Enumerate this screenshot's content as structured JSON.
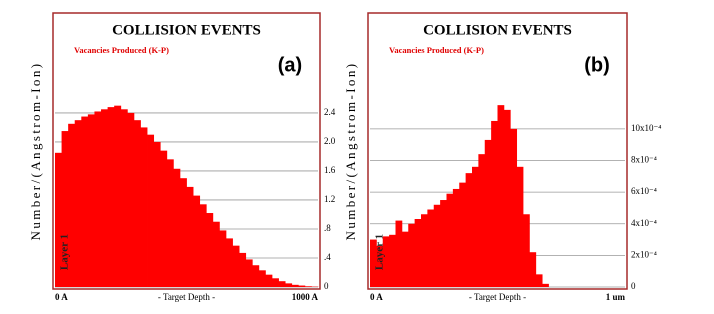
{
  "chart_data": [
    {
      "type": "histogram",
      "title": "COLLISION EVENTS",
      "subtitle": "Vacancies Produced (K-P)",
      "panel_label": "(a)",
      "ylabel": "Number/(Angstrom-Ion)",
      "layer_label": "Layer 1",
      "xlabel": "- Target Depth -",
      "color": "#ff0000",
      "grid": true,
      "bins": [
        0,
        25,
        50,
        75,
        100,
        125,
        150,
        175,
        200,
        225,
        250,
        275,
        300,
        325,
        350,
        375,
        400,
        425,
        450,
        475,
        500,
        525,
        550,
        575,
        600,
        625,
        650,
        675,
        700,
        725,
        750,
        775,
        800,
        825,
        850,
        875,
        900,
        925,
        950,
        975,
        1000
      ],
      "values": [
        1.85,
        2.15,
        2.25,
        2.3,
        2.35,
        2.38,
        2.42,
        2.45,
        2.48,
        2.5,
        2.45,
        2.4,
        2.3,
        2.2,
        2.1,
        2.0,
        1.88,
        1.76,
        1.63,
        1.5,
        1.38,
        1.26,
        1.14,
        1.02,
        0.9,
        0.78,
        0.67,
        0.57,
        0.47,
        0.38,
        0.3,
        0.23,
        0.17,
        0.12,
        0.08,
        0.05,
        0.03,
        0.02,
        0.01,
        0.005
      ],
      "xlim": [
        0,
        1000
      ],
      "xticks": [
        {
          "value": 0,
          "label": "0 A"
        },
        {
          "value": 1000,
          "label": "1000 A"
        }
      ],
      "ylim": [
        0,
        3.75
      ],
      "yticks": [
        0,
        {
          "value": 0.4,
          "label": ".4"
        },
        {
          "value": 0.8,
          "label": ".8"
        },
        1.2,
        1.6,
        {
          "value": 2,
          "label": "2.0"
        },
        2.4
      ]
    },
    {
      "type": "histogram",
      "title": "COLLISION EVENTS",
      "subtitle": "Vacancies Produced (K-P)",
      "panel_label": "(b)",
      "ylabel": "Number/(Angstrom-Ion)",
      "layer_label": "Layer 1",
      "xlabel": "- Target Depth -",
      "color": "#ff0000",
      "grid": true,
      "bins": [
        0,
        0.025,
        0.05,
        0.075,
        0.1,
        0.125,
        0.15,
        0.175,
        0.2,
        0.225,
        0.25,
        0.275,
        0.3,
        0.325,
        0.35,
        0.375,
        0.4,
        0.425,
        0.45,
        0.475,
        0.5,
        0.525,
        0.55,
        0.575,
        0.6,
        0.625,
        0.65,
        0.675,
        0.7,
        0.725,
        0.75,
        0.775,
        0.8,
        0.825,
        0.85,
        0.875,
        0.9,
        0.925,
        0.95,
        0.975,
        1
      ],
      "values": [
        0.0003,
        0.00026,
        0.00032,
        0.00033,
        0.00042,
        0.00035,
        0.0004,
        0.00043,
        0.00046,
        0.00049,
        0.00052,
        0.00055,
        0.00059,
        0.00062,
        0.00066,
        0.00072,
        0.00076,
        0.00084,
        0.00093,
        0.00105,
        0.00115,
        0.00112,
        0.001,
        0.00076,
        0.00046,
        0.00022,
        8e-05,
        2e-05,
        0,
        0,
        0,
        0,
        0,
        0,
        0,
        0,
        0,
        0,
        0,
        0
      ],
      "xlim": [
        0,
        1
      ],
      "xticks": [
        {
          "value": 0,
          "label": "0 A"
        },
        {
          "value": 1,
          "label": "1 um"
        }
      ],
      "ylim": [
        0,
        0.00172
      ],
      "yticks": [
        0,
        {
          "value": 0.0002,
          "label": "2x10⁻⁴"
        },
        {
          "value": 0.0004,
          "label": "4x10⁻⁴"
        },
        {
          "value": 0.0006,
          "label": "6x10⁻⁴"
        },
        {
          "value": 0.0008,
          "label": "8x10⁻⁴"
        },
        {
          "value": 0.001,
          "label": "10x10⁻⁴"
        }
      ]
    }
  ]
}
